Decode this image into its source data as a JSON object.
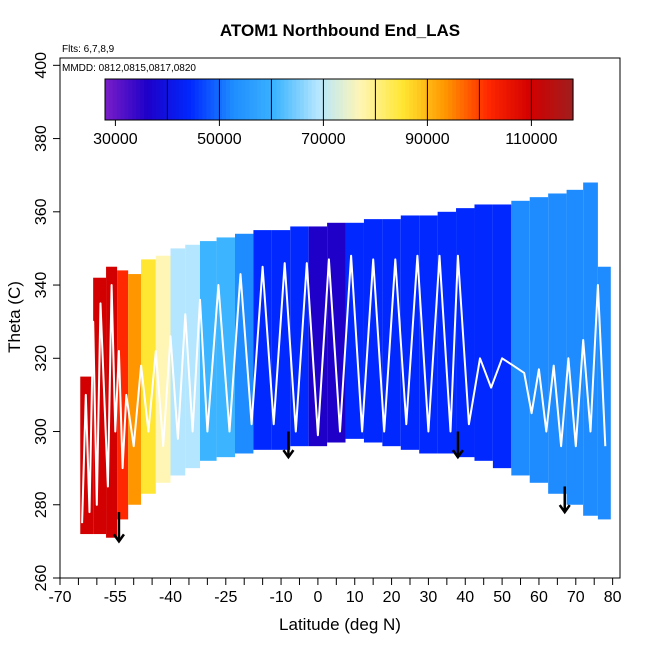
{
  "chart_data": {
    "type": "heatmap",
    "title": "ATOM1 Northbound End_LAS",
    "annotations": [
      "Flts: 6,7,8,9",
      "MMDD: 0812,0815,0817,0820"
    ],
    "xlabel": "Latitude (deg N)",
    "ylabel": "Theta (C)",
    "xlim": [
      -70,
      82
    ],
    "ylim": [
      260,
      402
    ],
    "xticks_labeled": [
      -70,
      -55,
      -40,
      -25,
      -10,
      0,
      10,
      20,
      30,
      40,
      50,
      60,
      70,
      80
    ],
    "xticks_minor": [
      -65,
      -60,
      -50,
      -45,
      -35,
      -30,
      -20,
      -15,
      -5,
      5,
      15,
      25,
      35,
      45,
      55,
      65,
      75
    ],
    "yticks": [
      260,
      280,
      300,
      320,
      340,
      360,
      380,
      400
    ],
    "colorbar": {
      "min": 28000,
      "max": 118000,
      "ticks": [
        30000,
        50000,
        70000,
        90000,
        110000
      ],
      "divisions": [
        40000,
        50000,
        60000,
        70000,
        80000,
        90000,
        100000,
        110000
      ],
      "colors": [
        "#7a1ec8",
        "#1e00c8",
        "#0028ff",
        "#1e8cff",
        "#3cb4ff",
        "#b4e6ff",
        "#fff5b4",
        "#ffe632",
        "#ff9600",
        "#ff2800",
        "#d20000",
        "#a01e1e"
      ]
    },
    "columns": [
      {
        "lat": -63,
        "bottom": 272,
        "top": 315,
        "value": 105000
      },
      {
        "lat": -59,
        "bottom": 272,
        "top": 342,
        "value": 108000
      },
      {
        "lat": -56,
        "bottom": 271,
        "top": 345,
        "value": 104000
      },
      {
        "lat": -53,
        "bottom": 276,
        "top": 344,
        "value": 96000
      },
      {
        "lat": -50,
        "bottom": 280,
        "top": 343,
        "value": 88000
      },
      {
        "lat": -46,
        "bottom": 283,
        "top": 347,
        "value": 82000
      },
      {
        "lat": -42,
        "bottom": 286,
        "top": 348,
        "value": 76000
      },
      {
        "lat": -38,
        "bottom": 288,
        "top": 350,
        "value": 70000
      },
      {
        "lat": -34,
        "bottom": 290,
        "top": 351,
        "value": 66000
      },
      {
        "lat": -30,
        "bottom": 292,
        "top": 352,
        "value": 62000
      },
      {
        "lat": -25,
        "bottom": 293,
        "top": 353,
        "value": 58000
      },
      {
        "lat": -20,
        "bottom": 294,
        "top": 354,
        "value": 55000
      },
      {
        "lat": -15,
        "bottom": 295,
        "top": 355,
        "value": 50000
      },
      {
        "lat": -10,
        "bottom": 295,
        "top": 355,
        "value": 47000
      },
      {
        "lat": -5,
        "bottom": 296,
        "top": 356,
        "value": 44000
      },
      {
        "lat": 0,
        "bottom": 296,
        "top": 356,
        "value": 42000
      },
      {
        "lat": 5,
        "bottom": 297,
        "top": 357,
        "value": 42000
      },
      {
        "lat": 10,
        "bottom": 298,
        "top": 357,
        "value": 43000
      },
      {
        "lat": 15,
        "bottom": 297,
        "top": 358,
        "value": 44000
      },
      {
        "lat": 20,
        "bottom": 296,
        "top": 358,
        "value": 46000
      },
      {
        "lat": 25,
        "bottom": 295,
        "top": 359,
        "value": 47000
      },
      {
        "lat": 30,
        "bottom": 294,
        "top": 359,
        "value": 48000
      },
      {
        "lat": 35,
        "bottom": 294,
        "top": 360,
        "value": 49000
      },
      {
        "lat": 40,
        "bottom": 293,
        "top": 361,
        "value": 45000
      },
      {
        "lat": 45,
        "bottom": 292,
        "top": 362,
        "value": 44000
      },
      {
        "lat": 50,
        "bottom": 290,
        "top": 362,
        "value": 48000
      },
      {
        "lat": 55,
        "bottom": 288,
        "top": 363,
        "value": 54000
      },
      {
        "lat": 60,
        "bottom": 286,
        "top": 364,
        "value": 55000
      },
      {
        "lat": 65,
        "bottom": 283,
        "top": 365,
        "value": 55000
      },
      {
        "lat": 70,
        "bottom": 280,
        "top": 366,
        "value": 55000
      },
      {
        "lat": 74,
        "bottom": 277,
        "top": 368,
        "value": 55000
      },
      {
        "lat": 78,
        "bottom": 276,
        "top": 345,
        "value": 55000
      }
    ],
    "profile_path": [
      [
        -64,
        275
      ],
      [
        -63,
        310
      ],
      [
        -62,
        278
      ],
      [
        -61,
        330
      ],
      [
        -60,
        280
      ],
      [
        -59,
        335
      ],
      [
        -57,
        285
      ],
      [
        -56,
        340
      ],
      [
        -55,
        300
      ],
      [
        -54,
        322
      ],
      [
        -53,
        290
      ],
      [
        -52,
        310
      ],
      [
        -50,
        296
      ],
      [
        -48,
        318
      ],
      [
        -46,
        300
      ],
      [
        -44,
        322
      ],
      [
        -42,
        296
      ],
      [
        -40,
        326
      ],
      [
        -38,
        298
      ],
      [
        -36,
        332
      ],
      [
        -34,
        300
      ],
      [
        -32,
        336
      ],
      [
        -30,
        300
      ],
      [
        -27,
        340
      ],
      [
        -24,
        300
      ],
      [
        -21,
        343
      ],
      [
        -18,
        302
      ],
      [
        -15,
        345
      ],
      [
        -12,
        302
      ],
      [
        -9,
        346
      ],
      [
        -6,
        300
      ],
      [
        -3,
        346
      ],
      [
        0,
        299
      ],
      [
        3,
        347
      ],
      [
        6,
        300
      ],
      [
        9,
        348
      ],
      [
        12,
        300
      ],
      [
        15,
        347
      ],
      [
        18,
        300
      ],
      [
        21,
        347
      ],
      [
        24,
        302
      ],
      [
        27,
        348
      ],
      [
        30,
        300
      ],
      [
        33,
        348
      ],
      [
        36,
        300
      ],
      [
        38,
        348
      ],
      [
        41,
        302
      ],
      [
        44,
        320
      ],
      [
        47,
        312
      ],
      [
        50,
        320
      ],
      [
        53,
        318
      ],
      [
        56,
        316
      ],
      [
        58,
        305
      ],
      [
        60,
        317
      ],
      [
        62,
        300
      ],
      [
        64,
        318
      ],
      [
        66,
        296
      ],
      [
        68,
        320
      ],
      [
        70,
        296
      ],
      [
        72,
        325
      ],
      [
        74,
        300
      ],
      [
        76,
        340
      ],
      [
        78,
        296
      ]
    ],
    "arrows": [
      {
        "lat": -54,
        "theta_top": 278,
        "theta_bottom": 270
      },
      {
        "lat": -8,
        "theta_top": 300,
        "theta_bottom": 293
      },
      {
        "lat": 38,
        "theta_top": 300,
        "theta_bottom": 293
      },
      {
        "lat": 67,
        "theta_top": 285,
        "theta_bottom": 278
      }
    ]
  }
}
